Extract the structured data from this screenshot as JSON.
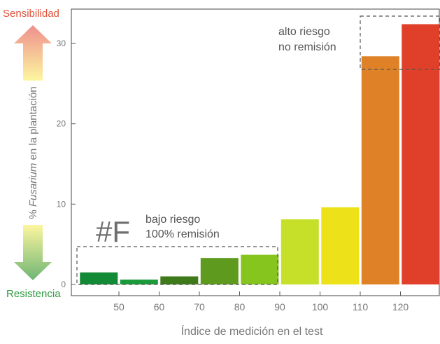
{
  "chart_data": {
    "type": "bar",
    "x": [
      45,
      55,
      65,
      75,
      85,
      95,
      105,
      115,
      125
    ],
    "values": [
      1.5,
      0.6,
      1.0,
      3.3,
      3.7,
      8.1,
      9.6,
      28.4,
      32.4
    ],
    "bar_colors": [
      "#138a36",
      "#1a9a3a",
      "#3f7a1a",
      "#5e9a1e",
      "#86c41e",
      "#c6e02a",
      "#ede21a",
      "#df8127",
      "#e0402a"
    ],
    "xlim": [
      40,
      130
    ],
    "ylim": [
      0,
      34
    ],
    "xticks": [
      50,
      60,
      70,
      80,
      90,
      100,
      110,
      120
    ],
    "yticks": [
      0,
      10,
      20,
      30
    ],
    "xlabel": "Índice de medición en el test",
    "ylabel_prefix": "% ",
    "ylabel_italic": "Fusarium",
    "ylabel_suffix": " en la plantación",
    "annotations": {
      "low": {
        "symbol": "#F",
        "line1": "bajo riesgo",
        "line2": "100% remisión"
      },
      "high": {
        "line1": "alto riesgo",
        "line2": "no remisión"
      }
    },
    "side": {
      "top_label": "Sensibilidad",
      "bottom_label": "Resistencia",
      "top_color": "#e0533a",
      "bottom_color": "#2e9a40"
    }
  }
}
